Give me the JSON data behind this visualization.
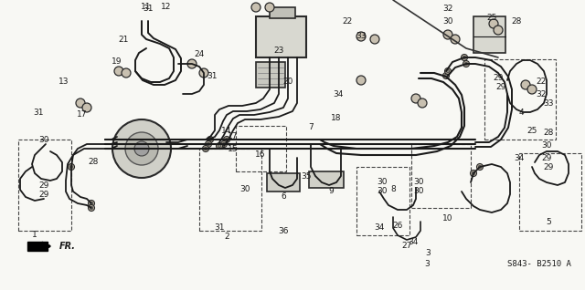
{
  "background_color": "#f5f5f0",
  "line_color": "#2a2a2a",
  "text_color": "#1a1a1a",
  "ref_code": "S843- B2510 A",
  "figsize": [
    6.4,
    3.18
  ],
  "dpi": 100
}
